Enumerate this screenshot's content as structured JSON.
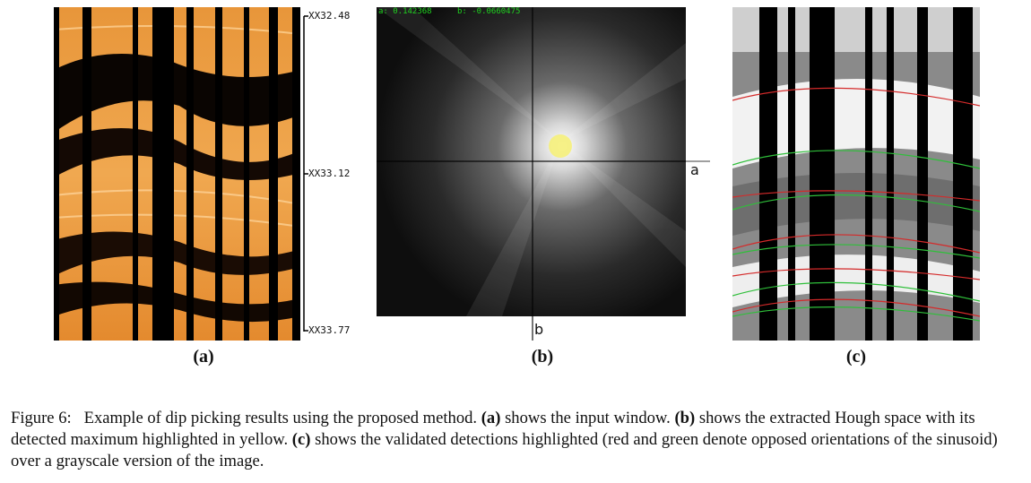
{
  "figure": {
    "panel_a": {
      "label": "(a)",
      "depth_ticks": [
        "XX32.48",
        "XX33.12",
        "XX33.77"
      ]
    },
    "panel_b": {
      "label": "(b)",
      "readout_a": "a: 0.142368",
      "readout_b": "b: -0.0660475",
      "axis_a": "a",
      "axis_b": "b",
      "highlight_color": "#f5f07a"
    },
    "panel_c": {
      "label": "(c)",
      "line_colors": {
        "red": "#d42a2a",
        "green": "#2fbf3a"
      }
    }
  },
  "caption": {
    "prefix": "Figure 6:",
    "intro": "Example of dip picking results using the proposed method.",
    "a_label": "(a)",
    "a_text": "shows the input window.",
    "b_label": "(b)",
    "b_text": "shows the extracted Hough space with its detected maximum highlighted in yellow.",
    "c_label": "(c)",
    "c_text": "shows the validated detections highlighted (red and green denote opposed orientations of the sinusoid) over a grayscale version of the image."
  }
}
